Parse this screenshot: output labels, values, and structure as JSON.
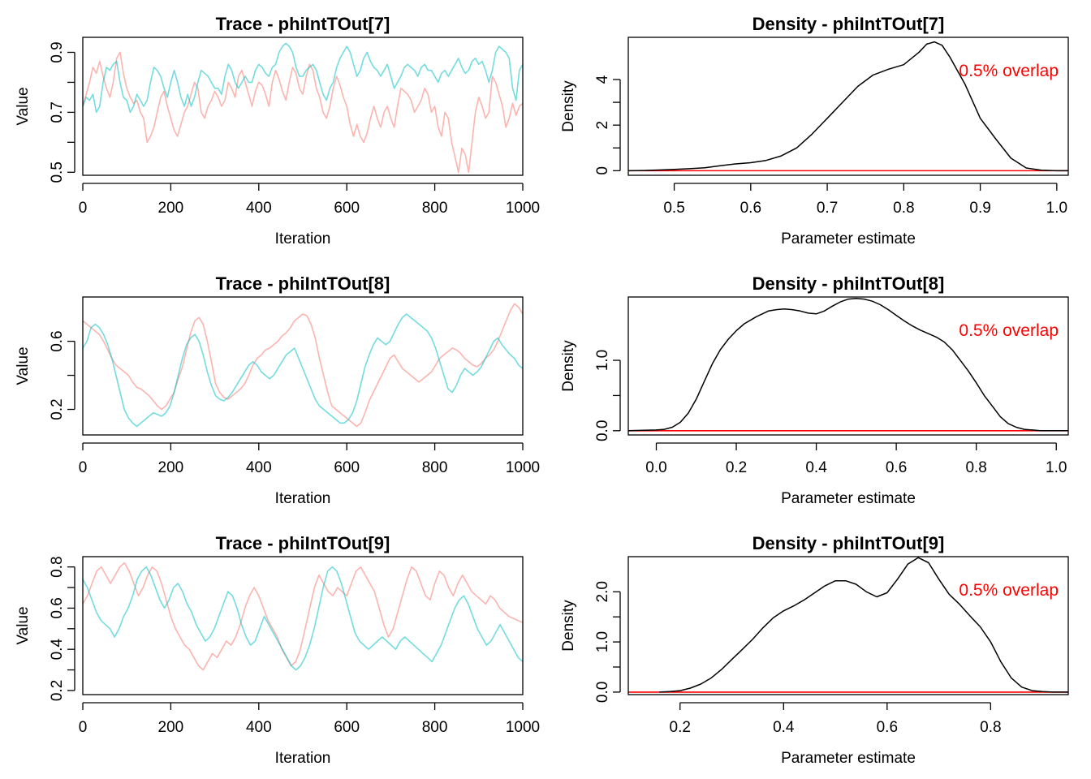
{
  "colors": {
    "chain1": "#F8766D",
    "chain2": "#00BFC4",
    "density_line": "#000000",
    "overlap_line": "#FF0000",
    "overlap_text": "#FF0000",
    "axis": "#000000"
  },
  "chart_data": [
    {
      "type": "line",
      "title": "Trace - phiIntTOut[7]",
      "xlabel": "Iteration",
      "ylabel": "Value",
      "xlim": [
        0,
        1000
      ],
      "ylim": [
        0.49,
        0.95
      ],
      "xticks": [
        "0",
        "200",
        "400",
        "600",
        "800",
        "1000"
      ],
      "yticks": [
        "0.5",
        "0.7",
        "0.9"
      ],
      "grid": false,
      "series": [
        {
          "values": [
            0.72,
            0.76,
            0.8,
            0.85,
            0.83,
            0.87,
            0.82,
            0.78,
            0.75,
            0.8,
            0.88,
            0.9,
            0.83,
            0.78,
            0.75,
            0.73,
            0.74,
            0.7,
            0.68,
            0.6,
            0.62,
            0.65,
            0.7,
            0.75,
            0.77,
            0.72,
            0.68,
            0.64,
            0.62,
            0.66,
            0.7,
            0.72,
            0.76,
            0.8,
            0.78,
            0.7,
            0.68,
            0.72,
            0.74,
            0.77,
            0.75,
            0.72,
            0.74,
            0.8,
            0.78,
            0.75,
            0.82,
            0.84,
            0.8,
            0.76,
            0.72,
            0.77,
            0.8,
            0.79,
            0.76,
            0.72,
            0.8,
            0.84,
            0.81,
            0.77,
            0.74,
            0.8,
            0.85,
            0.83,
            0.78,
            0.76,
            0.82,
            0.86,
            0.84,
            0.78,
            0.75,
            0.7,
            0.68,
            0.72,
            0.78,
            0.82,
            0.79,
            0.75,
            0.72,
            0.66,
            0.62,
            0.66,
            0.62,
            0.6,
            0.63,
            0.68,
            0.72,
            0.68,
            0.65,
            0.7,
            0.72,
            0.68,
            0.65,
            0.72,
            0.78,
            0.77,
            0.76,
            0.74,
            0.7,
            0.72,
            0.74,
            0.78,
            0.76,
            0.7,
            0.72,
            0.65,
            0.62,
            0.7,
            0.68,
            0.6,
            0.55,
            0.5,
            0.58,
            0.56,
            0.5,
            0.6,
            0.7,
            0.75,
            0.72,
            0.68,
            0.7,
            0.82,
            0.8,
            0.76,
            0.72,
            0.65,
            0.68,
            0.73,
            0.69,
            0.72,
            0.73
          ]
        },
        {
          "values": [
            0.72,
            0.75,
            0.74,
            0.76,
            0.7,
            0.72,
            0.8,
            0.85,
            0.84,
            0.86,
            0.87,
            0.8,
            0.75,
            0.74,
            0.7,
            0.72,
            0.76,
            0.74,
            0.72,
            0.74,
            0.8,
            0.85,
            0.84,
            0.82,
            0.78,
            0.75,
            0.8,
            0.84,
            0.8,
            0.75,
            0.72,
            0.76,
            0.72,
            0.75,
            0.8,
            0.84,
            0.83,
            0.82,
            0.8,
            0.78,
            0.78,
            0.76,
            0.82,
            0.86,
            0.84,
            0.8,
            0.78,
            0.8,
            0.82,
            0.8,
            0.8,
            0.84,
            0.86,
            0.85,
            0.83,
            0.82,
            0.85,
            0.86,
            0.9,
            0.92,
            0.93,
            0.92,
            0.9,
            0.85,
            0.82,
            0.82,
            0.84,
            0.85,
            0.86,
            0.84,
            0.8,
            0.76,
            0.74,
            0.78,
            0.8,
            0.85,
            0.88,
            0.9,
            0.92,
            0.9,
            0.86,
            0.82,
            0.84,
            0.88,
            0.9,
            0.87,
            0.85,
            0.84,
            0.82,
            0.84,
            0.86,
            0.82,
            0.78,
            0.8,
            0.82,
            0.85,
            0.86,
            0.85,
            0.84,
            0.82,
            0.85,
            0.86,
            0.84,
            0.84,
            0.82,
            0.8,
            0.83,
            0.84,
            0.82,
            0.84,
            0.86,
            0.88,
            0.85,
            0.83,
            0.84,
            0.87,
            0.88,
            0.86,
            0.87,
            0.84,
            0.8,
            0.84,
            0.9,
            0.92,
            0.91,
            0.9,
            0.88,
            0.78,
            0.74,
            0.84,
            0.86
          ]
        }
      ]
    },
    {
      "type": "line",
      "title": "Density - phiIntTOut[7]",
      "xlabel": "Parameter estimate",
      "ylabel": "Density",
      "xlim": [
        0.44,
        1.015
      ],
      "ylim": [
        -0.2,
        5.85
      ],
      "xticks": [
        "0.5",
        "0.6",
        "0.7",
        "0.8",
        "0.9",
        "1.0"
      ],
      "yticks": [
        "0",
        "2",
        "4"
      ],
      "annotation": "0.5% overlap",
      "grid": false,
      "x": [
        0.44,
        0.46,
        0.48,
        0.5,
        0.52,
        0.54,
        0.56,
        0.58,
        0.6,
        0.62,
        0.64,
        0.66,
        0.68,
        0.7,
        0.72,
        0.74,
        0.76,
        0.78,
        0.8,
        0.82,
        0.83,
        0.84,
        0.85,
        0.86,
        0.88,
        0.9,
        0.92,
        0.94,
        0.96,
        0.98,
        1.0,
        1.015
      ],
      "series": [
        {
          "values": [
            0,
            0.01,
            0.03,
            0.06,
            0.09,
            0.13,
            0.22,
            0.3,
            0.35,
            0.45,
            0.65,
            1.0,
            1.6,
            2.3,
            3.0,
            3.7,
            4.2,
            4.45,
            4.65,
            5.2,
            5.55,
            5.65,
            5.5,
            5.0,
            3.8,
            2.3,
            1.4,
            0.55,
            0.12,
            0.02,
            0,
            0
          ]
        }
      ],
      "overlap_level": 0
    },
    {
      "type": "line",
      "title": "Trace - phiIntTOut[8]",
      "xlabel": "Iteration",
      "ylabel": "Value",
      "xlim": [
        0,
        1000
      ],
      "ylim": [
        0.05,
        0.86
      ],
      "xticks": [
        "0",
        "200",
        "400",
        "600",
        "800",
        "1000"
      ],
      "yticks": [
        "0.2",
        "0.6"
      ],
      "grid": false,
      "series": [
        {
          "values": [
            0.72,
            0.7,
            0.68,
            0.66,
            0.64,
            0.6,
            0.55,
            0.5,
            0.46,
            0.44,
            0.42,
            0.4,
            0.36,
            0.33,
            0.32,
            0.3,
            0.28,
            0.25,
            0.22,
            0.2,
            0.22,
            0.26,
            0.3,
            0.38,
            0.45,
            0.55,
            0.65,
            0.72,
            0.74,
            0.7,
            0.6,
            0.48,
            0.35,
            0.3,
            0.27,
            0.26,
            0.28,
            0.3,
            0.32,
            0.35,
            0.4,
            0.46,
            0.5,
            0.52,
            0.55,
            0.56,
            0.58,
            0.6,
            0.63,
            0.65,
            0.68,
            0.72,
            0.74,
            0.76,
            0.75,
            0.7,
            0.62,
            0.5,
            0.4,
            0.3,
            0.22,
            0.2,
            0.18,
            0.16,
            0.14,
            0.12,
            0.1,
            0.12,
            0.18,
            0.25,
            0.3,
            0.35,
            0.4,
            0.45,
            0.5,
            0.52,
            0.48,
            0.44,
            0.42,
            0.4,
            0.38,
            0.36,
            0.38,
            0.4,
            0.42,
            0.46,
            0.5,
            0.52,
            0.54,
            0.56,
            0.55,
            0.53,
            0.5,
            0.48,
            0.46,
            0.45,
            0.47,
            0.5,
            0.52,
            0.55,
            0.6,
            0.66,
            0.72,
            0.78,
            0.82,
            0.8,
            0.76
          ]
        },
        {
          "values": [
            0.56,
            0.6,
            0.68,
            0.7,
            0.68,
            0.64,
            0.58,
            0.5,
            0.4,
            0.3,
            0.2,
            0.15,
            0.12,
            0.1,
            0.12,
            0.14,
            0.16,
            0.18,
            0.17,
            0.16,
            0.18,
            0.22,
            0.3,
            0.4,
            0.5,
            0.58,
            0.62,
            0.64,
            0.6,
            0.52,
            0.42,
            0.34,
            0.28,
            0.26,
            0.25,
            0.27,
            0.3,
            0.34,
            0.38,
            0.42,
            0.46,
            0.48,
            0.46,
            0.42,
            0.4,
            0.38,
            0.4,
            0.44,
            0.48,
            0.52,
            0.54,
            0.56,
            0.5,
            0.44,
            0.38,
            0.32,
            0.26,
            0.22,
            0.2,
            0.18,
            0.16,
            0.14,
            0.12,
            0.12,
            0.14,
            0.18,
            0.25,
            0.35,
            0.45,
            0.52,
            0.58,
            0.62,
            0.6,
            0.58,
            0.6,
            0.65,
            0.7,
            0.74,
            0.76,
            0.74,
            0.72,
            0.7,
            0.68,
            0.66,
            0.62,
            0.56,
            0.48,
            0.4,
            0.32,
            0.3,
            0.34,
            0.4,
            0.44,
            0.42,
            0.4,
            0.42,
            0.45,
            0.5,
            0.55,
            0.6,
            0.62,
            0.58,
            0.55,
            0.52,
            0.5,
            0.46,
            0.44
          ]
        }
      ]
    },
    {
      "type": "line",
      "title": "Density - phiIntTOut[8]",
      "xlabel": "Parameter estimate",
      "ylabel": "Density",
      "xlim": [
        -0.07,
        1.03
      ],
      "ylim": [
        -0.06,
        1.9
      ],
      "xticks": [
        "0.0",
        "0.2",
        "0.4",
        "0.6",
        "0.8",
        "1.0"
      ],
      "yticks": [
        "0.0",
        "1.0"
      ],
      "annotation": "0.5% overlap",
      "grid": false,
      "x": [
        -0.07,
        0,
        0.02,
        0.04,
        0.06,
        0.08,
        0.1,
        0.12,
        0.14,
        0.16,
        0.18,
        0.2,
        0.22,
        0.25,
        0.28,
        0.3,
        0.32,
        0.34,
        0.36,
        0.38,
        0.4,
        0.42,
        0.44,
        0.46,
        0.48,
        0.5,
        0.52,
        0.54,
        0.56,
        0.58,
        0.6,
        0.62,
        0.64,
        0.66,
        0.68,
        0.7,
        0.72,
        0.74,
        0.76,
        0.78,
        0.8,
        0.82,
        0.84,
        0.86,
        0.88,
        0.9,
        0.92,
        0.94,
        0.96,
        1.03
      ],
      "series": [
        {
          "values": [
            0,
            0.01,
            0.02,
            0.05,
            0.12,
            0.25,
            0.45,
            0.7,
            0.95,
            1.15,
            1.3,
            1.42,
            1.52,
            1.62,
            1.7,
            1.72,
            1.73,
            1.72,
            1.7,
            1.67,
            1.66,
            1.7,
            1.77,
            1.83,
            1.87,
            1.88,
            1.87,
            1.84,
            1.79,
            1.72,
            1.64,
            1.56,
            1.49,
            1.43,
            1.38,
            1.33,
            1.26,
            1.15,
            1.0,
            0.85,
            0.68,
            0.5,
            0.35,
            0.2,
            0.1,
            0.05,
            0.02,
            0.01,
            0,
            0
          ]
        }
      ],
      "overlap_level": 0
    },
    {
      "type": "line",
      "title": "Trace - phiIntTOut[9]",
      "xlabel": "Iteration",
      "ylabel": "Value",
      "xlim": [
        0,
        1000
      ],
      "ylim": [
        0.18,
        0.85
      ],
      "xticks": [
        "0",
        "200",
        "400",
        "600",
        "800",
        "1000"
      ],
      "yticks": [
        "0.2",
        "0.4",
        "0.6",
        "0.8"
      ],
      "grid": false,
      "series": [
        {
          "values": [
            0.62,
            0.66,
            0.72,
            0.78,
            0.8,
            0.76,
            0.72,
            0.76,
            0.8,
            0.82,
            0.78,
            0.72,
            0.66,
            0.7,
            0.76,
            0.8,
            0.78,
            0.72,
            0.64,
            0.56,
            0.5,
            0.46,
            0.42,
            0.4,
            0.36,
            0.32,
            0.3,
            0.34,
            0.38,
            0.36,
            0.4,
            0.44,
            0.42,
            0.46,
            0.52,
            0.6,
            0.66,
            0.7,
            0.66,
            0.6,
            0.54,
            0.5,
            0.46,
            0.4,
            0.36,
            0.32,
            0.34,
            0.4,
            0.5,
            0.6,
            0.7,
            0.76,
            0.72,
            0.68,
            0.66,
            0.7,
            0.68,
            0.66,
            0.72,
            0.78,
            0.8,
            0.76,
            0.72,
            0.68,
            0.6,
            0.52,
            0.46,
            0.5,
            0.58,
            0.66,
            0.74,
            0.8,
            0.78,
            0.72,
            0.66,
            0.64,
            0.72,
            0.78,
            0.76,
            0.7,
            0.66,
            0.72,
            0.76,
            0.72,
            0.68,
            0.66,
            0.64,
            0.62,
            0.66,
            0.64,
            0.6,
            0.58,
            0.56,
            0.55,
            0.54,
            0.53
          ]
        },
        {
          "values": [
            0.74,
            0.7,
            0.64,
            0.58,
            0.54,
            0.52,
            0.5,
            0.46,
            0.5,
            0.56,
            0.6,
            0.66,
            0.74,
            0.78,
            0.8,
            0.76,
            0.7,
            0.64,
            0.6,
            0.64,
            0.7,
            0.72,
            0.68,
            0.62,
            0.58,
            0.52,
            0.48,
            0.44,
            0.46,
            0.5,
            0.56,
            0.62,
            0.68,
            0.66,
            0.6,
            0.52,
            0.46,
            0.42,
            0.44,
            0.5,
            0.56,
            0.52,
            0.48,
            0.44,
            0.4,
            0.36,
            0.32,
            0.3,
            0.32,
            0.36,
            0.42,
            0.5,
            0.6,
            0.7,
            0.78,
            0.8,
            0.78,
            0.72,
            0.64,
            0.56,
            0.48,
            0.44,
            0.42,
            0.4,
            0.42,
            0.44,
            0.46,
            0.44,
            0.42,
            0.4,
            0.44,
            0.46,
            0.44,
            0.42,
            0.4,
            0.38,
            0.36,
            0.34,
            0.38,
            0.42,
            0.48,
            0.54,
            0.6,
            0.64,
            0.66,
            0.62,
            0.56,
            0.5,
            0.46,
            0.42,
            0.44,
            0.48,
            0.52,
            0.48,
            0.44,
            0.4,
            0.36,
            0.34
          ]
        }
      ]
    },
    {
      "type": "line",
      "title": "Density - phiIntTOut[9]",
      "xlabel": "Parameter estimate",
      "ylabel": "Density",
      "xlim": [
        0.1,
        0.95
      ],
      "ylim": [
        -0.05,
        2.7
      ],
      "xticks": [
        "0.2",
        "0.4",
        "0.6",
        "0.8"
      ],
      "yticks": [
        "0.0",
        "1.0",
        "2.0"
      ],
      "annotation": "0.5% overlap",
      "grid": false,
      "x": [
        0.16,
        0.18,
        0.2,
        0.22,
        0.24,
        0.26,
        0.28,
        0.3,
        0.32,
        0.34,
        0.36,
        0.38,
        0.4,
        0.42,
        0.44,
        0.46,
        0.48,
        0.5,
        0.52,
        0.54,
        0.56,
        0.58,
        0.6,
        0.62,
        0.64,
        0.66,
        0.68,
        0.7,
        0.72,
        0.74,
        0.76,
        0.78,
        0.8,
        0.82,
        0.84,
        0.86,
        0.88,
        0.9,
        0.92,
        0.95
      ],
      "series": [
        {
          "values": [
            0,
            0.01,
            0.03,
            0.08,
            0.16,
            0.28,
            0.45,
            0.65,
            0.85,
            1.05,
            1.28,
            1.48,
            1.62,
            1.72,
            1.84,
            1.98,
            2.12,
            2.22,
            2.22,
            2.15,
            2.0,
            1.9,
            1.98,
            2.25,
            2.55,
            2.68,
            2.58,
            2.25,
            1.95,
            1.75,
            1.52,
            1.3,
            1.0,
            0.6,
            0.28,
            0.1,
            0.03,
            0.01,
            0,
            0
          ]
        }
      ],
      "overlap_level": 0
    }
  ]
}
